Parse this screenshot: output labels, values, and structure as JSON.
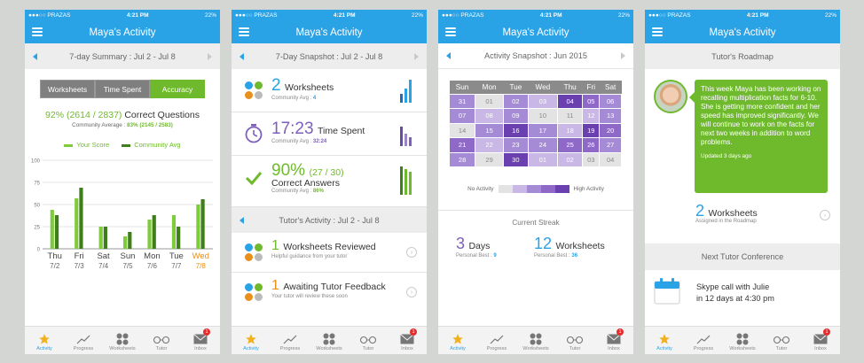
{
  "status": {
    "carrier": "●●●○○ PRAZAS",
    "time": "4:21 PM",
    "battery": "22%"
  },
  "nav_title": "Maya's Activity",
  "colors": {
    "blue": "#2aa2e6",
    "green": "#6fba2c",
    "orange": "#e98f1c",
    "purple": "#6a3fb0"
  },
  "tabs": [
    {
      "label": "Activity",
      "icon": "star-icon"
    },
    {
      "label": "Progress",
      "icon": "trend-icon"
    },
    {
      "label": "Worksheets",
      "icon": "grid-icon"
    },
    {
      "label": "Tutor",
      "icon": "glasses-icon"
    },
    {
      "label": "Inbox",
      "icon": "mail-icon",
      "badge": "1"
    }
  ],
  "p1": {
    "header": "7-day Summary : Jul 2 - Jul 8",
    "segments": [
      "Worksheets",
      "Time Spent",
      "Accuracy"
    ],
    "correct_prefix": "92% (2614 / 2837)",
    "correct_suffix": "Correct Questions",
    "community_label": "Community Average : ",
    "community_value": "83% (2145 / 2583)",
    "legend_score": "Your Score",
    "legend_avg": "Community Avg"
  },
  "chart_data": {
    "type": "bar",
    "categories": [
      "Thu",
      "Fri",
      "Sat",
      "Sun",
      "Mon",
      "Tue",
      "Wed"
    ],
    "dates": [
      "7/2",
      "7/3",
      "7/4",
      "7/5",
      "7/6",
      "7/7",
      "7/8"
    ],
    "ylim": [
      0,
      100
    ],
    "yticks": [
      0,
      25,
      50,
      75,
      100
    ],
    "series": [
      {
        "name": "Your Score",
        "values": [
          44,
          57,
          25,
          14,
          33,
          38,
          50
        ]
      },
      {
        "name": "Community Avg",
        "values": [
          38,
          69,
          25,
          19,
          38,
          25,
          56
        ]
      }
    ],
    "grid": true,
    "legend": "top"
  },
  "p2": {
    "header": "7-Day Snapshot : Jul 2 - Jul 8",
    "rows": [
      {
        "value": "2",
        "label": "Worksheets",
        "sub": "Community Avg : ",
        "sub_value": "4"
      },
      {
        "value": "17:23",
        "label": "Time Spent",
        "sub": "Community Avg : ",
        "sub_value": "32:24"
      },
      {
        "value": "90%",
        "extra": "(27 / 30)",
        "label": "Correct Answers",
        "sub": "Community Avg : ",
        "sub_value": "86%"
      }
    ],
    "tutor_header": "Tutor's Activity : Jul 2 - Jul 8",
    "tutor_rows": [
      {
        "value": "1",
        "label": "Worksheets Reviewed",
        "sub": "Helpful guidance from your tutor"
      },
      {
        "value": "1",
        "label": "Awaiting Tutor Feedback",
        "sub": "Your tutor will review these soon"
      }
    ]
  },
  "p3": {
    "header": "Activity Snapshot : Jun 2015",
    "weekdays": [
      "Sun",
      "Mon",
      "Tue",
      "Wed",
      "Thu",
      "Fri",
      "Sat"
    ],
    "days": [
      [
        "31",
        "01",
        "02",
        "03",
        "04",
        "05",
        "06"
      ],
      [
        "07",
        "08",
        "09",
        "10",
        "11",
        "12",
        "13"
      ],
      [
        "14",
        "15",
        "16",
        "17",
        "18",
        "19",
        "20"
      ],
      [
        "21",
        "22",
        "23",
        "24",
        "25",
        "26",
        "27"
      ],
      [
        "28",
        "29",
        "30",
        "01",
        "02",
        "03",
        "04"
      ]
    ],
    "levels": [
      [
        2,
        0,
        2,
        1,
        4,
        3,
        2
      ],
      [
        2,
        1,
        2,
        0,
        0,
        1,
        2
      ],
      [
        0,
        2,
        4,
        2,
        1,
        4,
        3
      ],
      [
        3,
        1,
        2,
        2,
        3,
        3,
        2
      ],
      [
        2,
        0,
        4,
        1,
        1,
        0,
        0
      ]
    ],
    "level_colors": [
      "#e3e3e3",
      "#c9b7e6",
      "#a58ad6",
      "#8e69c8",
      "#6a3fb0"
    ],
    "no_activity": "No Activity",
    "high_activity": "High Activity",
    "streak_header": "Current Streak",
    "days_value": "3",
    "days_label": "Days",
    "days_best": "Personal Best : ",
    "days_best_value": "9",
    "ws_value": "12",
    "ws_label": "Worksheets",
    "ws_best": "Personal Best : ",
    "ws_best_value": "36"
  },
  "p4": {
    "header": "Tutor's Roadmap",
    "message": "This week Maya has been working on recalling multiplication facts for 6-10. She is getting more confident and her speed has improved significantly. We will continue to work on the facts for next two weeks in addition to word problems.",
    "updated": "Updated 3 days ago",
    "ws_value": "2",
    "ws_label": "Worksheets",
    "ws_sub": "Assigned in the Roadmap",
    "conf_header": "Next Tutor Conference",
    "conf_line1": "Skype call with Julie",
    "conf_line2": "in 12 days at 4:30 pm"
  }
}
